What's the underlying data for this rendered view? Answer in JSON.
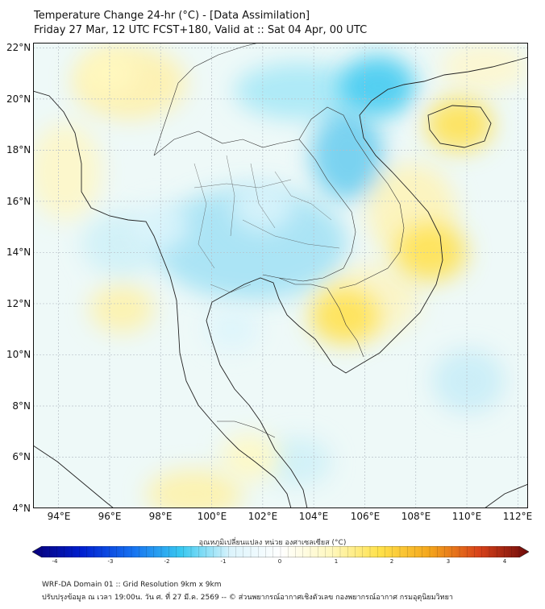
{
  "title": {
    "line1": "Temperature Change 24-hr (°C) - [Data Assimilation]",
    "line2": "Friday 27 Mar, 12 UTC FCST+180, Valid at :: Sat 04 Apr, 00 UTC"
  },
  "map": {
    "y_ticks": [
      "22°N",
      "20°N",
      "18°N",
      "16°N",
      "14°N",
      "12°N",
      "10°N",
      "8°N",
      "6°N",
      "4°N"
    ],
    "x_ticks": [
      "94°E",
      "96°E",
      "98°E",
      "100°E",
      "102°E",
      "104°E",
      "106°E",
      "108°E",
      "110°E",
      "112°E"
    ],
    "lon_range": [
      93.0,
      112.4
    ],
    "lat_range": [
      4.0,
      22.2
    ],
    "features": [
      {
        "name": "cool-anomaly-central-thailand",
        "lon": 102.0,
        "lat": 15.8,
        "value": -1.2
      },
      {
        "name": "cool-anomaly-gulf-of-tonkin",
        "lon": 106.5,
        "lat": 20.5,
        "value": -1.8
      },
      {
        "name": "cool-anomaly-andaman-sea",
        "lon": 98.0,
        "lat": 15.0,
        "value": -1.0
      },
      {
        "name": "cool-anomaly-gulf-of-thailand",
        "lon": 100.8,
        "lat": 11.0,
        "value": -0.8
      },
      {
        "name": "warm-anomaly-cambodia",
        "lon": 105.2,
        "lat": 11.5,
        "value": 1.5
      },
      {
        "name": "warm-anomaly-vietnam-coast",
        "lon": 108.6,
        "lat": 14.0,
        "value": 1.6
      },
      {
        "name": "warm-anomaly-hainan",
        "lon": 109.7,
        "lat": 19.0,
        "value": 1.4
      },
      {
        "name": "warm-anomaly-myanmar-north",
        "lon": 96.0,
        "lat": 21.0,
        "value": 1.1
      },
      {
        "name": "warm-anomaly-malaysia",
        "lon": 101.5,
        "lat": 6.0,
        "value": 1.0
      }
    ]
  },
  "colorbar": {
    "label": "อุณหภูมิเปลี่ยนแปลง หน่วย องศาเซลเซียส (°C)",
    "ticks": [
      "-4",
      "-3",
      "-2",
      "-1",
      "0",
      "1",
      "2",
      "3",
      "4"
    ],
    "range": [
      -4,
      4
    ],
    "colors": [
      "#08007a",
      "#0020d0",
      "#1670f0",
      "#38c8f0",
      "#dcf4fc",
      "#ffffff",
      "#fff8c0",
      "#ffe14a",
      "#f4a61c",
      "#d8421a",
      "#6e0a0a"
    ]
  },
  "footer": {
    "line1": "WRF-DA Domain 01 :: Grid Resolution 9km x 9km",
    "line2": "ปรับปรุงข้อมูล ณ เวลา 19:00น. วัน ศ. ที่ 27 มี.ค. 2569 -- © ส่วนพยากรณ์อากาศเชิงตัวเลข กองพยากรณ์อากาศ กรมอุตุนิยมวิทยา"
  }
}
